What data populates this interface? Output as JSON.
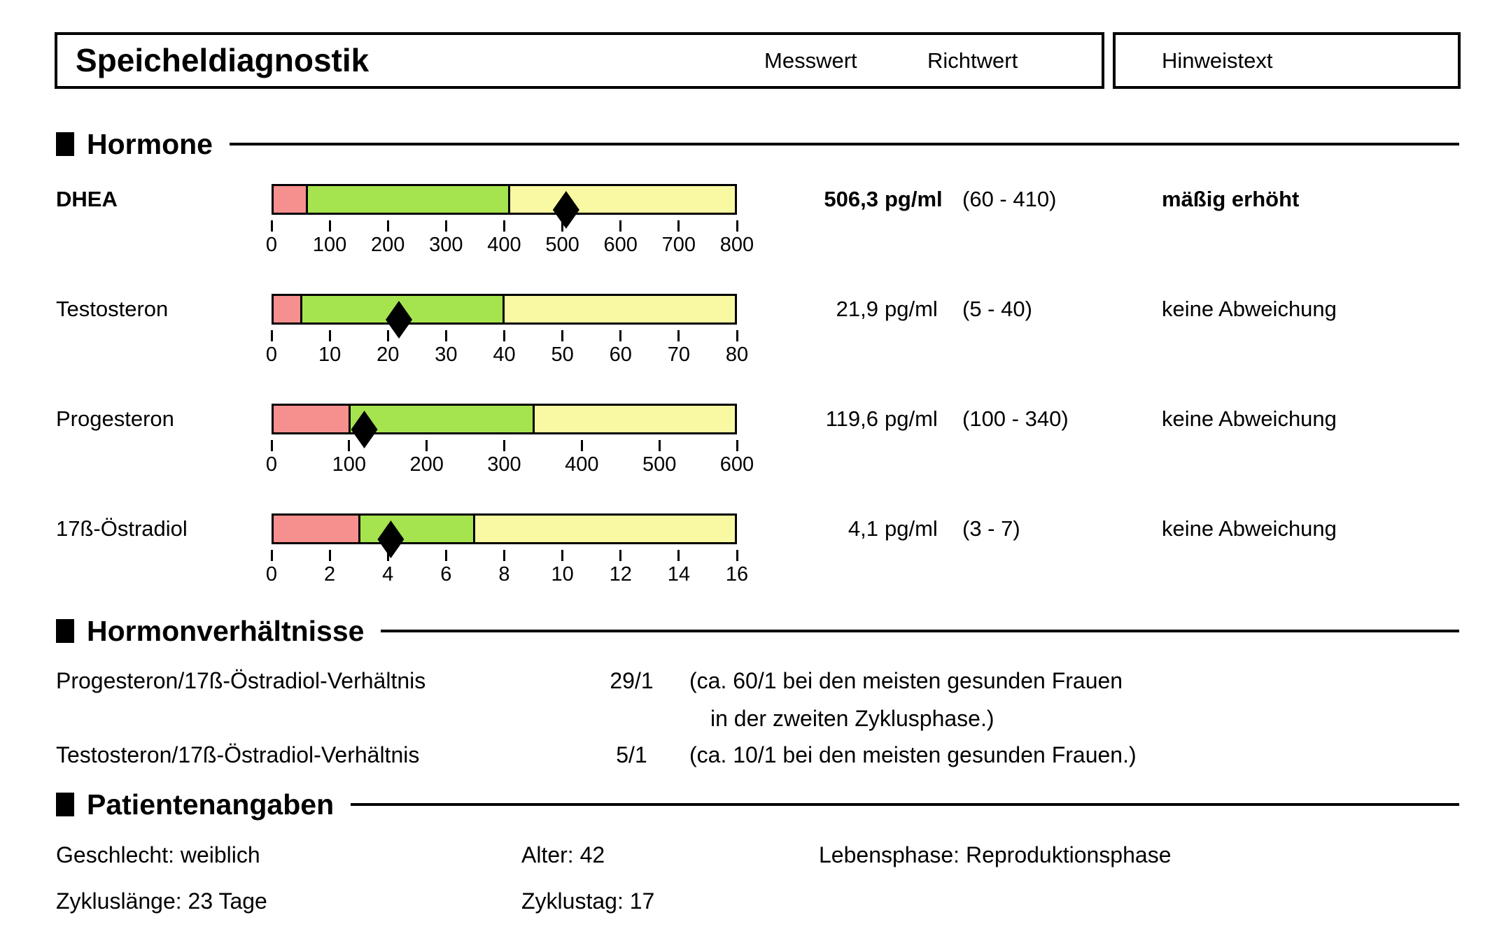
{
  "header": {
    "title": "Speicheldiagnostik",
    "measured_label": "Messwert",
    "reference_label": "Richtwert",
    "hint_label": "Hinweistext"
  },
  "sections": {
    "hormones_title": "Hormone",
    "ratios_title": "Hormonverhältnisse",
    "patient_title": "Patientenangaben"
  },
  "chart_data": {
    "type": "range-bar",
    "zone_colors": {
      "low": "#f6908f",
      "normal": "#a6e44f",
      "high": "#faf9a3",
      "marker": "#000000",
      "outline": "#000000"
    },
    "rows": [
      {
        "name": "DHEA",
        "value": 506.3,
        "value_label": "506,3",
        "unit": "pg/ml",
        "reference_label": "(60 - 410)",
        "reference_low": 60,
        "reference_high": 410,
        "status": "mäßig erhöht",
        "emphasis": true,
        "axis_min": 0,
        "axis_max": 800,
        "ticks": [
          0,
          100,
          200,
          300,
          400,
          500,
          600,
          700,
          800
        ]
      },
      {
        "name": "Testosteron",
        "value": 21.9,
        "value_label": "21,9",
        "unit": "pg/ml",
        "reference_label": "(5 - 40)",
        "reference_low": 5,
        "reference_high": 40,
        "status": "keine Abweichung",
        "emphasis": false,
        "axis_min": 0,
        "axis_max": 80,
        "ticks": [
          0,
          10,
          20,
          30,
          40,
          50,
          60,
          70,
          80
        ]
      },
      {
        "name": "Progesteron",
        "value": 119.6,
        "value_label": "119,6",
        "unit": "pg/ml",
        "reference_label": "(100 - 340)",
        "reference_low": 100,
        "reference_high": 340,
        "status": "keine Abweichung",
        "emphasis": false,
        "axis_min": 0,
        "axis_max": 600,
        "ticks": [
          0,
          100,
          200,
          300,
          400,
          500,
          600
        ]
      },
      {
        "name": "17ß-Östradiol",
        "value": 4.1,
        "value_label": "4,1",
        "unit": "pg/ml",
        "reference_label": "(3 - 7)",
        "reference_low": 3,
        "reference_high": 7,
        "status": "keine Abweichung",
        "emphasis": false,
        "axis_min": 0,
        "axis_max": 16,
        "ticks": [
          0,
          2,
          4,
          6,
          8,
          10,
          12,
          14,
          16
        ]
      }
    ]
  },
  "ratios": [
    {
      "label": "Progesteron/17ß-Östradiol-Verhältnis",
      "value": "29/1",
      "note_lines": [
        "(ca. 60/1 bei den meisten gesunden Frauen",
        "in der zweiten Zyklusphase.)"
      ]
    },
    {
      "label": "Testosteron/17ß-Östradiol-Verhältnis",
      "value": "5/1",
      "note_lines": [
        "(ca. 10/1 bei den meisten gesunden Frauen.)"
      ]
    }
  ],
  "patient": {
    "geschlecht": {
      "label": "Geschlecht:",
      "value": "weiblich"
    },
    "alter": {
      "label": "Alter:",
      "value": "42"
    },
    "lebensphase": {
      "label": "Lebensphase:",
      "value": "Reproduktionsphase"
    },
    "zykluslaenge": {
      "label": "Zykluslänge:",
      "value": "23 Tage"
    },
    "zyklustag": {
      "label": "Zyklustag:",
      "value": "17"
    }
  }
}
